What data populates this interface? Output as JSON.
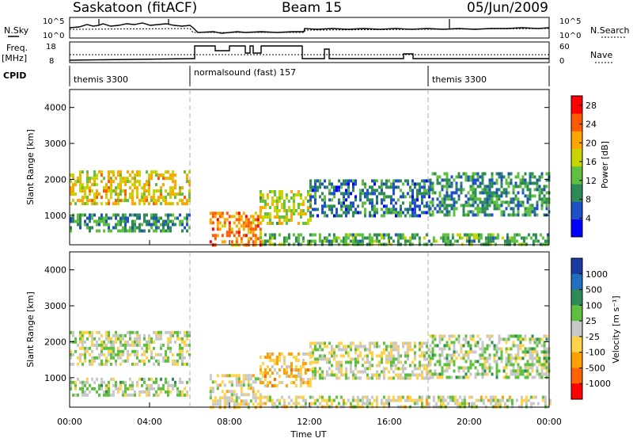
{
  "header": {
    "station": "Saskatoon (fitACF)",
    "beam": "Beam 15",
    "date": "05/Jun/2009"
  },
  "top_panels": {
    "nsky_label": "N.Sky",
    "nsky_ticks": [
      "10^5",
      "10^0"
    ],
    "nsearch_label": "N.Search",
    "nsearch_ticks": [
      "10^5",
      "10^0"
    ],
    "freq_label_1": "Freq.",
    "freq_label_2": "[MHz]",
    "freq_ticks": [
      "18",
      "8"
    ],
    "nave_label": "Nave",
    "nave_ticks": [
      "60",
      "0"
    ],
    "cpid_label": "CPID"
  },
  "cpid_segments": [
    {
      "label": "themis 3300",
      "start_h": 0,
      "end_h": 6
    },
    {
      "label": "normalsound (fast) 157",
      "start_h": 6,
      "end_h": 18
    },
    {
      "label": "themis 3300",
      "start_h": 18,
      "end_h": 24
    }
  ],
  "colors": {
    "power_scale": [
      "#0000ff",
      "#1e50c8",
      "#2e8b57",
      "#5fbf3f",
      "#c8d400",
      "#ffa500",
      "#ff5a00",
      "#ff0000"
    ],
    "velocity_scale": [
      "#1a3ca0",
      "#2070c0",
      "#2e8b57",
      "#5fc040",
      "#c8c8c8",
      "#ffd24a",
      "#ffa000",
      "#ff6400",
      "#ff0000"
    ]
  },
  "chart_data": [
    {
      "type": "heatmap",
      "title": "Saskatoon (fitACF) Beam 15 05/Jun/2009",
      "xlabel": "Time UT",
      "ylabel": "Slant Range [km]",
      "xlim": [
        0,
        24
      ],
      "ylim": [
        180,
        4500
      ],
      "x_ticks": [
        "00:00",
        "04:00",
        "08:00",
        "12:00",
        "16:00",
        "20:00",
        "00:00"
      ],
      "y_ticks": [
        "1000",
        "2000",
        "3000",
        "4000"
      ],
      "colorbar": {
        "label": "Power [dB]",
        "ticks": [
          "4",
          "8",
          "12",
          "16",
          "20",
          "24",
          "28"
        ],
        "range": [
          0,
          30
        ]
      },
      "echo_bands": [
        {
          "t0": 0.0,
          "t1": 6.0,
          "r0": 1350,
          "r1": 2250,
          "value": 18
        },
        {
          "t0": 0.0,
          "t1": 6.0,
          "r0": 550,
          "r1": 1050,
          "value": 10
        },
        {
          "t0": 7.0,
          "t1": 9.5,
          "r0": 180,
          "r1": 1100,
          "value": 22
        },
        {
          "t0": 9.5,
          "t1": 12.0,
          "r0": 800,
          "r1": 1700,
          "value": 16
        },
        {
          "t0": 9.5,
          "t1": 24.0,
          "r0": 180,
          "r1": 500,
          "value": 12
        },
        {
          "t0": 12.0,
          "t1": 18.0,
          "r0": 1000,
          "r1": 2000,
          "value": 8
        },
        {
          "t0": 18.0,
          "t1": 24.0,
          "r0": 1000,
          "r1": 2200,
          "value": 10
        }
      ]
    },
    {
      "type": "heatmap",
      "title": "Saskatoon (fitACF) Beam 15 05/Jun/2009",
      "xlabel": "Time UT",
      "ylabel": "Slant Range [km]",
      "xlim": [
        0,
        24
      ],
      "ylim": [
        180,
        4500
      ],
      "x_ticks": [
        "00:00",
        "04:00",
        "08:00",
        "12:00",
        "16:00",
        "20:00",
        "00:00"
      ],
      "y_ticks": [
        "1000",
        "2000",
        "3000",
        "4000"
      ],
      "colorbar": {
        "label": "Velocity [m s⁻¹]",
        "ticks": [
          "1000",
          "500",
          "100",
          "25",
          "-25",
          "-100",
          "-500",
          "-1000"
        ],
        "range": [
          -1000,
          1000
        ]
      },
      "echo_bands": [
        {
          "t0": 0.0,
          "t1": 6.0,
          "r0": 1400,
          "r1": 2300,
          "value": 0
        },
        {
          "t0": 0.0,
          "t1": 6.0,
          "r0": 550,
          "r1": 1000,
          "value": 80
        },
        {
          "t0": 7.0,
          "t1": 9.5,
          "r0": 180,
          "r1": 1100,
          "value": -100
        },
        {
          "t0": 9.5,
          "t1": 12.0,
          "r0": 800,
          "r1": 1700,
          "value": -300
        },
        {
          "t0": 9.5,
          "t1": 24.0,
          "r0": 180,
          "r1": 500,
          "value": -60
        },
        {
          "t0": 12.0,
          "t1": 18.0,
          "r0": 1000,
          "r1": 2000,
          "value": 0
        },
        {
          "t0": 18.0,
          "t1": 24.0,
          "r0": 1000,
          "r1": 2200,
          "value": 80
        }
      ]
    }
  ]
}
